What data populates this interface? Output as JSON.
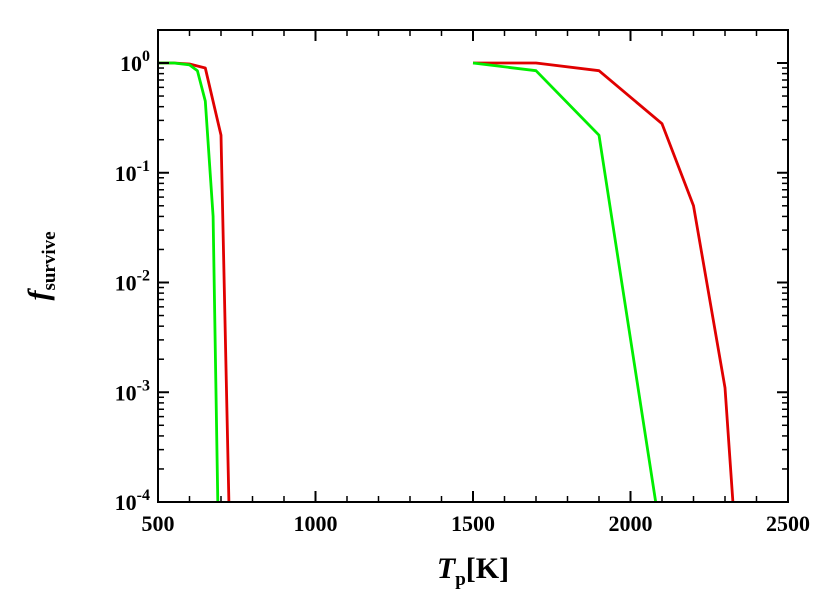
{
  "chart_data": {
    "type": "line",
    "xlabel": {
      "main": "T",
      "sub": "p",
      "rest": "[K]"
    },
    "ylabel": {
      "main": "f",
      "sub": "survive"
    },
    "xlim": [
      500,
      2500
    ],
    "ylim": [
      0.0001,
      2
    ],
    "yscale": "log",
    "grid": false,
    "legend": "none",
    "x_ticks": [
      {
        "value": 500,
        "label": "500"
      },
      {
        "value": 1000,
        "label": "1000"
      },
      {
        "value": 1500,
        "label": "1500"
      },
      {
        "value": 2000,
        "label": "2000"
      },
      {
        "value": 2500,
        "label": "2500"
      }
    ],
    "y_ticks": [
      {
        "value": 1,
        "base": "10",
        "exp": "0"
      },
      {
        "value": 0.1,
        "base": "10",
        "exp": "-1"
      },
      {
        "value": 0.01,
        "base": "10",
        "exp": "-2"
      },
      {
        "value": 0.001,
        "base": "10",
        "exp": "-3"
      },
      {
        "value": 0.0001,
        "base": "10",
        "exp": "-4"
      }
    ],
    "series": [
      {
        "color": "#e00000",
        "x": [
          500,
          550,
          600,
          650,
          700,
          725,
          1500,
          1700,
          1900,
          2100,
          2200,
          2300,
          2325
        ],
        "y": [
          1.0,
          1.0,
          0.98,
          0.9,
          0.22,
          0.0001,
          1.0,
          1.0,
          0.85,
          0.28,
          0.05,
          0.0011,
          0.0001
        ],
        "segments": [
          [
            0,
            5
          ],
          [
            6,
            12
          ]
        ]
      },
      {
        "color": "#00ee00",
        "x": [
          500,
          550,
          600,
          625,
          650,
          675,
          690,
          1500,
          1700,
          1900,
          2080
        ],
        "y": [
          1.0,
          1.0,
          0.96,
          0.85,
          0.45,
          0.04,
          0.0001,
          1.0,
          0.85,
          0.22,
          0.0001
        ],
        "segments": [
          [
            0,
            6
          ],
          [
            0,
            0
          ],
          [
            7,
            10
          ]
        ]
      }
    ]
  }
}
